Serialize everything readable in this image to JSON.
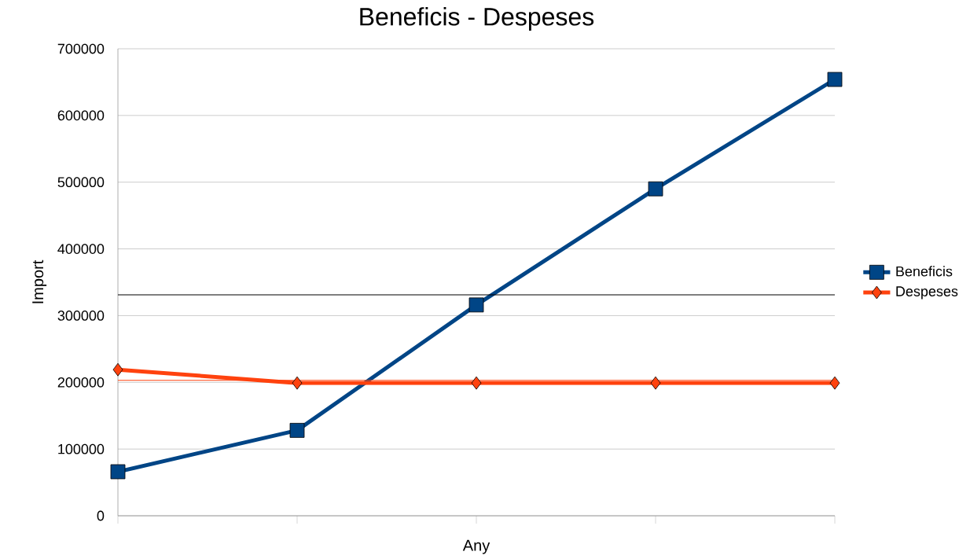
{
  "chart_data": {
    "type": "line",
    "title": "Beneficis - Despeses",
    "xlabel": "Any",
    "ylabel": "Import",
    "categories": [
      null,
      null,
      null,
      null,
      null
    ],
    "series": [
      {
        "name": "Beneficis",
        "color": "#004586",
        "marker": "square",
        "values": [
          66000,
          128000,
          316000,
          490000,
          654000
        ]
      },
      {
        "name": "Despeses",
        "color": "#ff420e",
        "marker": "diamond",
        "values": [
          219000,
          199000,
          199000,
          199000,
          199000
        ]
      }
    ],
    "ref_lines": [
      {
        "axis": "y",
        "value": 331000,
        "color": "#000000"
      },
      {
        "axis": "y",
        "value": 203000,
        "color": "#ff420e"
      }
    ],
    "ylim": [
      0,
      700000
    ],
    "yticks": [
      0,
      100000,
      200000,
      300000,
      400000,
      500000,
      600000,
      700000
    ],
    "grid": "y",
    "legend": "right",
    "line_style": "solid"
  }
}
